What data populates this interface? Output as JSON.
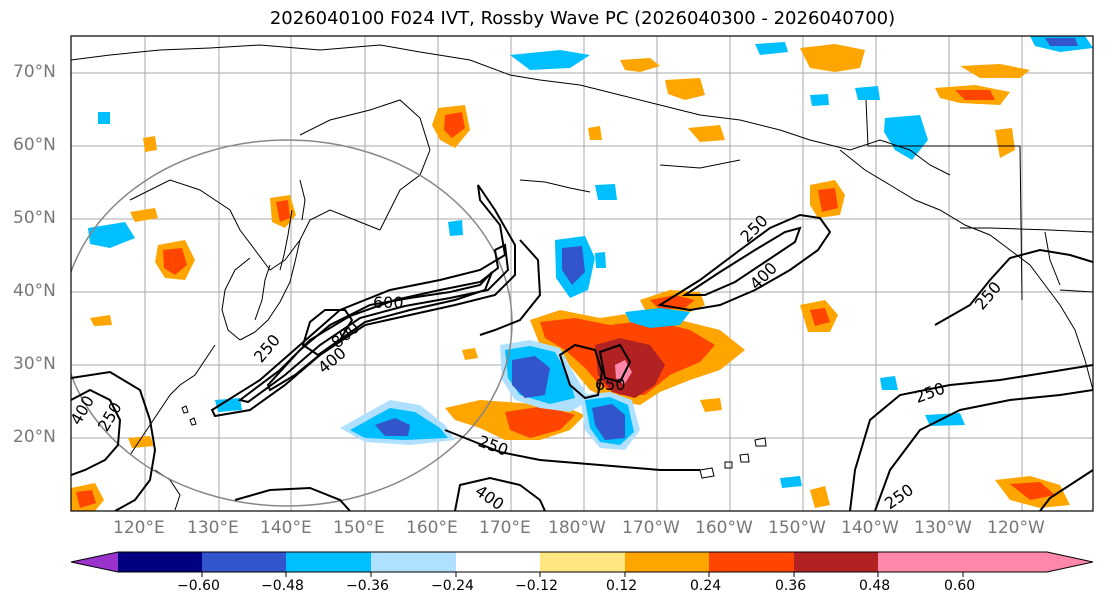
{
  "title": "2026040100 F024 IVT, Rossby Wave PC (2026040300 - 2026040700)",
  "lat_labels": [
    "70°N",
    "60°N",
    "50°N",
    "40°N",
    "30°N",
    "20°N"
  ],
  "lon_labels": [
    "120°E",
    "130°E",
    "140°E",
    "150°E",
    "160°E",
    "170°E",
    "180°W",
    "170°W",
    "160°W",
    "150°W",
    "140°W",
    "130°W",
    "120°W"
  ],
  "contour_labels": [
    "600",
    "800",
    "400",
    "250",
    "250",
    "400",
    "250",
    "250",
    "650",
    "250",
    "400",
    "250",
    "250",
    "400",
    "250"
  ],
  "colorbar": {
    "colors": [
      "#9933cc",
      "#000080",
      "#3355cc",
      "#00bfff",
      "#b0e0ff",
      "#ffffff",
      "#ffe680",
      "#ffa500",
      "#ff4500",
      "#b22222",
      "#ff88aa"
    ],
    "tick_labels": [
      "−0.60",
      "−0.48",
      "−0.36",
      "−0.24",
      "−0.12",
      "0.12",
      "0.24",
      "0.36",
      "0.48",
      "0.60"
    ]
  }
}
